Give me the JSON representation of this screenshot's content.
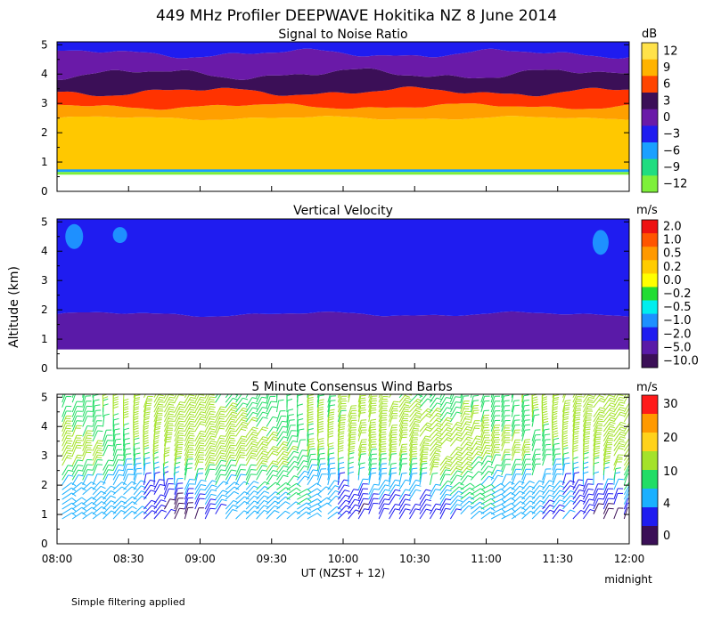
{
  "figure": {
    "title": "449 MHz Profiler DEEPWAVE Hokitika NZ  8 June 2014",
    "ylabel": "Altitude (km)",
    "xlabel": "UT  (NZST + 12)",
    "x_end_note": "midnight",
    "footnote": "Simple filtering applied",
    "xticks": [
      "08:00",
      "08:30",
      "09:00",
      "09:30",
      "10:00",
      "10:30",
      "11:00",
      "11:30",
      "12:00"
    ],
    "yticks": [
      "0",
      "1",
      "2",
      "3",
      "4",
      "5"
    ]
  },
  "chart_data": [
    {
      "type": "heatmap",
      "title": "Signal to Noise Ratio",
      "units": "dB",
      "xlim": [
        "08:00",
        "12:00"
      ],
      "ylim": [
        0,
        5.1
      ],
      "colorbar": {
        "labels": [
          "12",
          "9",
          "6",
          "3",
          "0",
          "−3",
          "−6",
          "−9",
          "−12"
        ],
        "colors": [
          "#ffe24a",
          "#ffb300",
          "#ff4500",
          "#3b0f57",
          "#6a1aa8",
          "#1f1cf0",
          "#1aa0ff",
          "#20dd80",
          "#7ef03a"
        ]
      },
      "bands": [
        {
          "name": ">12 dB",
          "color": "#ffc800",
          "from_km": 0.7,
          "to_km": 2.5
        },
        {
          "name": "9 dB",
          "color": "#ffa000",
          "from_km": 2.5,
          "to_km": 2.9
        },
        {
          "name": "6 dB",
          "color": "#ff3300",
          "from_km": 2.9,
          "to_km": 3.4
        },
        {
          "name": "3 dB",
          "color": "#3b0f57",
          "from_km": 3.4,
          "to_km": 4.0
        },
        {
          "name": "0 dB",
          "color": "#6a1aa8",
          "from_km": 4.0,
          "to_km": 4.7
        },
        {
          "name": "-3 dB",
          "color": "#1f1cf0",
          "from_km": 4.7,
          "to_km": 5.1
        }
      ]
    },
    {
      "type": "heatmap",
      "title": "Vertical Velocity",
      "units": "m/s",
      "xlim": [
        "08:00",
        "12:00"
      ],
      "ylim": [
        0,
        5.1
      ],
      "colorbar": {
        "labels": [
          "2.0",
          "1.0",
          "0.5",
          "0.2",
          "0.0",
          "−0.2",
          "−0.5",
          "−1.0",
          "−2.0",
          "−5.0",
          "−10.0"
        ],
        "colors": [
          "#ee1111",
          "#ff5500",
          "#ff9900",
          "#ffcc00",
          "#ffff00",
          "#22dd33",
          "#00eeee",
          "#1e90ff",
          "#1f1cf0",
          "#5a1aa8",
          "#3b0f57"
        ]
      },
      "bands": [
        {
          "name": "-2.0 m/s",
          "color": "#5a1aa8",
          "from_km": 0.65,
          "to_km": 1.85
        },
        {
          "name": "-1.0 m/s",
          "color": "#1f1cf0",
          "from_km": 1.85,
          "to_km": 5.1
        }
      ]
    },
    {
      "type": "scatter",
      "title": "5 Minute Consensus Wind Barbs",
      "units": "m/s",
      "xlim": [
        "08:00",
        "12:00"
      ],
      "ylim": [
        0,
        5.1
      ],
      "colorbar": {
        "labels": [
          "30",
          "20",
          "10",
          "4",
          "0"
        ],
        "colors": [
          "#ff1a1a",
          "#ff9900",
          "#ffd21a",
          "#a4e22a",
          "#22dd66",
          "#1ab0ff",
          "#1f1cf0",
          "#3b0f57"
        ]
      },
      "speed_profile_km": [
        1.0,
        2.0,
        3.0,
        4.0,
        5.0
      ],
      "speed_profile_ms": [
        4,
        6,
        12,
        11,
        10
      ]
    }
  ]
}
